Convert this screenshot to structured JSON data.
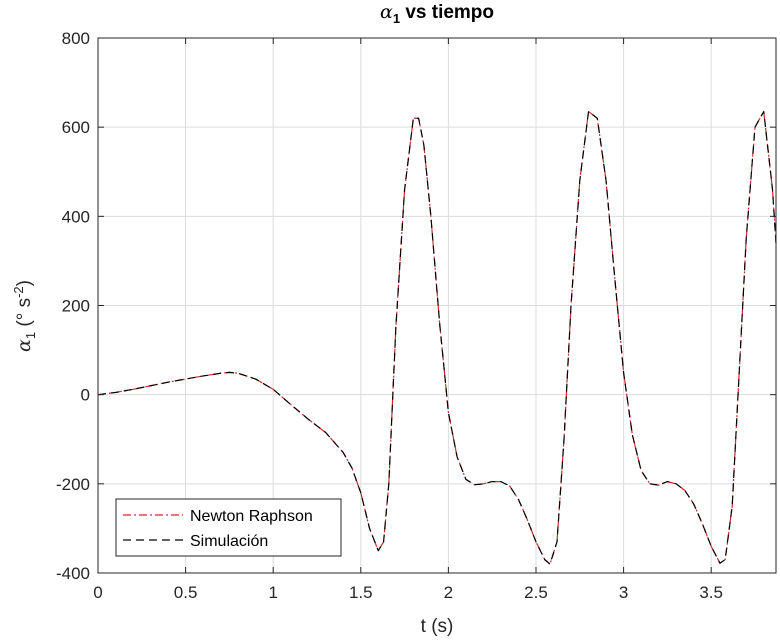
{
  "chart_data": {
    "type": "line",
    "title": {
      "symbol": "α",
      "subscript": "1",
      "rest": " vs tiempo"
    },
    "xlabel": "t (s)",
    "ylabel": {
      "symbol": "α",
      "subscript": "1",
      "unit_open": " (° s",
      "unit_exp": "-2",
      "unit_close": ")"
    },
    "xlim": [
      0,
      3.87
    ],
    "ylim": [
      -400,
      800
    ],
    "xticks": [
      0,
      0.5,
      1,
      1.5,
      2,
      2.5,
      3,
      3.5
    ],
    "xtick_labels": [
      "0",
      "0.5",
      "1",
      "1.5",
      "2",
      "2.5",
      "3",
      "3.5"
    ],
    "yticks": [
      -400,
      -200,
      0,
      200,
      400,
      600,
      800
    ],
    "ytick_labels": [
      "-400",
      "-200",
      "0",
      "200",
      "400",
      "600",
      "800"
    ],
    "grid": true,
    "legend_position": "bottom-left",
    "x": [
      0,
      0.1,
      0.2,
      0.3,
      0.4,
      0.5,
      0.6,
      0.7,
      0.75,
      0.8,
      0.9,
      1.0,
      1.1,
      1.2,
      1.3,
      1.4,
      1.45,
      1.5,
      1.55,
      1.6,
      1.63,
      1.66,
      1.7,
      1.75,
      1.8,
      1.83,
      1.86,
      1.9,
      1.95,
      2.0,
      2.05,
      2.1,
      2.15,
      2.2,
      2.25,
      2.3,
      2.35,
      2.4,
      2.45,
      2.5,
      2.55,
      2.58,
      2.62,
      2.66,
      2.7,
      2.75,
      2.8,
      2.85,
      2.9,
      2.95,
      3.0,
      3.05,
      3.1,
      3.15,
      3.2,
      3.25,
      3.3,
      3.35,
      3.4,
      3.45,
      3.5,
      3.55,
      3.58,
      3.62,
      3.66,
      3.7,
      3.75,
      3.8,
      3.85,
      3.87
    ],
    "series": [
      {
        "name": "Newton Raphson",
        "color": "#d62728",
        "dash": "dashdot",
        "values": [
          0,
          5,
          12,
          20,
          28,
          35,
          42,
          48,
          50,
          48,
          35,
          12,
          -22,
          -55,
          -85,
          -130,
          -165,
          -220,
          -300,
          -350,
          -330,
          -200,
          150,
          460,
          620,
          620,
          560,
          400,
          160,
          -40,
          -140,
          -190,
          -202,
          -200,
          -195,
          -195,
          -205,
          -235,
          -280,
          -330,
          -370,
          -380,
          -330,
          -100,
          200,
          480,
          635,
          620,
          480,
          260,
          50,
          -90,
          -170,
          -200,
          -203,
          -195,
          -200,
          -215,
          -245,
          -290,
          -340,
          -378,
          -370,
          -250,
          50,
          350,
          600,
          635,
          460,
          340
        ]
      },
      {
        "name": "Simulación",
        "color": "#000000",
        "dash": "dashed",
        "values": [
          0,
          5,
          12,
          20,
          28,
          35,
          42,
          48,
          50,
          48,
          35,
          12,
          -22,
          -55,
          -85,
          -130,
          -165,
          -220,
          -300,
          -350,
          -330,
          -200,
          150,
          460,
          620,
          620,
          560,
          400,
          160,
          -40,
          -140,
          -190,
          -202,
          -200,
          -195,
          -195,
          -205,
          -235,
          -280,
          -330,
          -370,
          -380,
          -330,
          -100,
          200,
          480,
          635,
          620,
          480,
          260,
          50,
          -90,
          -170,
          -200,
          -203,
          -195,
          -200,
          -215,
          -245,
          -290,
          -340,
          -378,
          -370,
          -250,
          50,
          350,
          600,
          635,
          460,
          340
        ]
      }
    ]
  }
}
